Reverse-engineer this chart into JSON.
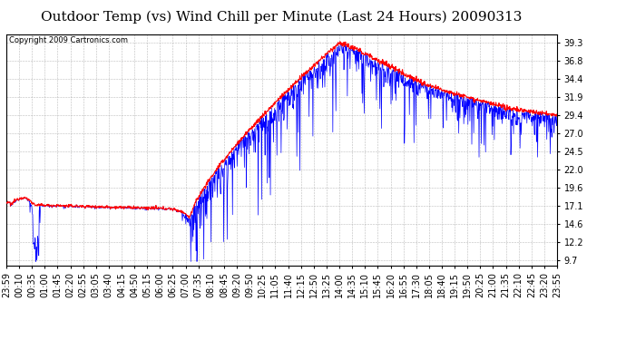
{
  "title": "Outdoor Temp (vs) Wind Chill per Minute (Last 24 Hours) 20090313",
  "copyright": "Copyright 2009 Cartronics.com",
  "yticks": [
    9.7,
    12.2,
    14.6,
    17.1,
    19.6,
    22.0,
    24.5,
    27.0,
    29.4,
    31.9,
    34.4,
    36.8,
    39.3
  ],
  "ymin": 9.0,
  "ymax": 40.5,
  "background_color": "#ffffff",
  "plot_bg_color": "#ffffff",
  "grid_color": "#aaaaaa",
  "line_color_red": "#ff0000",
  "line_color_blue": "#0000ff",
  "title_fontsize": 11,
  "tick_label_fontsize": 7,
  "n_points": 1440,
  "x_tick_labels": [
    "23:59",
    "00:10",
    "00:35",
    "01:00",
    "01:45",
    "02:20",
    "02:55",
    "03:05",
    "03:40",
    "04:15",
    "04:50",
    "05:15",
    "06:00",
    "06:25",
    "07:00",
    "07:35",
    "08:10",
    "08:45",
    "09:20",
    "09:50",
    "10:25",
    "11:05",
    "11:40",
    "12:15",
    "12:50",
    "13:25",
    "14:00",
    "14:35",
    "15:10",
    "15:45",
    "16:20",
    "16:55",
    "17:30",
    "18:05",
    "18:40",
    "19:15",
    "19:50",
    "20:25",
    "21:00",
    "21:35",
    "22:10",
    "22:45",
    "23:20",
    "23:55"
  ]
}
